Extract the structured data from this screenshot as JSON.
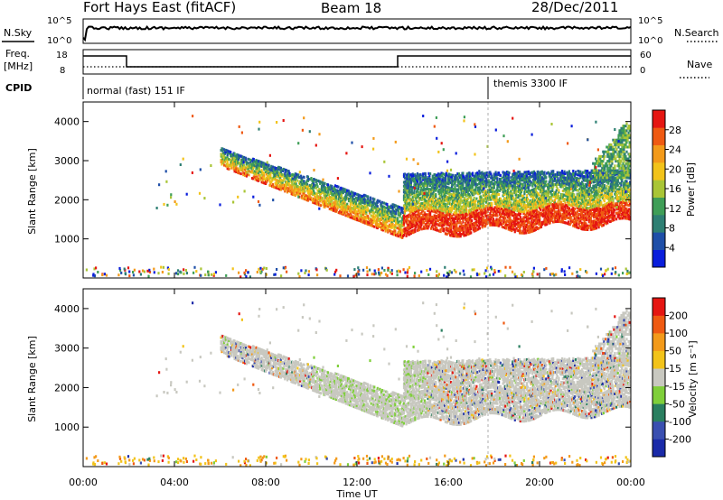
{
  "header": {
    "station": "Fort Hays East (fitACF)",
    "beam": "Beam 18",
    "date": "28/Dec/2011"
  },
  "panels": {
    "nsky_label": "N.Sky",
    "nsky_ticks": [
      "10^5",
      "10^0"
    ],
    "nsearch_label": "N.Search",
    "nsearch_ticks": [
      "10^5",
      "10^0"
    ],
    "freq_label_1": "Freq.",
    "freq_label_2": "[MHz]",
    "freq_ticks": [
      "18",
      "8"
    ],
    "nave_label": "Nave",
    "nave_ticks": [
      "60",
      "0"
    ],
    "cpid_label": "CPID",
    "cpid_1": "normal (fast) 151 IF",
    "cpid_2": "themis 3300 IF"
  },
  "colors": {
    "power": [
      "#0a1edc",
      "#1f4fa8",
      "#2e7f73",
      "#3f9e57",
      "#a9c536",
      "#f2c31a",
      "#f39a1a",
      "#ef5a12",
      "#e51612"
    ],
    "velocity": [
      "#1a2aa8",
      "#3a4fb0",
      "#2a7f60",
      "#7fcf3a",
      "#c8c8c0",
      "#f2c31a",
      "#f39a1a",
      "#ef5a12",
      "#e51612"
    ]
  },
  "chart_data": [
    {
      "type": "heatmap",
      "name": "power",
      "xlabel": "",
      "ylabel": "Slant Range [km]",
      "yticks": [
        "4000",
        "3000",
        "2000",
        "1000"
      ],
      "ylim": [
        0,
        4500
      ],
      "xlim_hours": [
        0,
        24
      ],
      "colorbar": {
        "label": "Power [dB]",
        "ticks": [
          "28",
          "24",
          "20",
          "16",
          "12",
          "8",
          "4"
        ],
        "range": [
          0,
          30
        ]
      },
      "features": [
        {
          "t_start": 6.0,
          "t_end": 14.0,
          "range_start_km": 3000,
          "range_end_km": 1050,
          "note": "descending band"
        },
        {
          "t_start": 14.0,
          "t_end": 24.0,
          "range_start_km": 1200,
          "range_end_km": 1600,
          "note": "strong band"
        },
        {
          "t_start": 14.0,
          "t_end": 24.0,
          "range_start_km": 2400,
          "range_end_km": 2600,
          "note": "weak upper band"
        },
        {
          "t_start": 22.5,
          "t_end": 24.0,
          "range_start_km": 3000,
          "range_end_km": 4300,
          "note": "late rising echo"
        }
      ]
    },
    {
      "type": "heatmap",
      "name": "velocity",
      "xlabel": "Time UT",
      "ylabel": "Slant Range [km]",
      "xticks": [
        "00:00",
        "04:00",
        "08:00",
        "12:00",
        "16:00",
        "20:00",
        "00:00"
      ],
      "yticks": [
        "4000",
        "3000",
        "2000",
        "1000"
      ],
      "ylim": [
        0,
        4500
      ],
      "xlim_hours": [
        0,
        24
      ],
      "colorbar": {
        "label": "Velocity [m s⁻¹]",
        "ticks": [
          "200",
          "100",
          "50",
          "15",
          "-15",
          "-50",
          "-100",
          "-200"
        ],
        "range": [
          -250,
          250
        ]
      }
    }
  ]
}
